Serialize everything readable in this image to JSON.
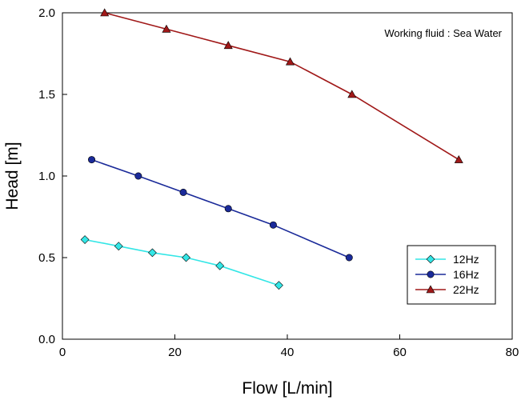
{
  "chart_data": {
    "type": "line",
    "title": "",
    "xlabel": "Flow [L/min]",
    "ylabel": "Head [m]",
    "xlim": [
      0,
      80
    ],
    "ylim": [
      0.0,
      2.0
    ],
    "x_ticks": [
      "0",
      "20",
      "40",
      "60",
      "80"
    ],
    "y_ticks": [
      "0.0",
      "0.5",
      "1.0",
      "1.5",
      "2.0"
    ],
    "grid": false,
    "legend_position": "bottom-right",
    "annotation": "Working fluid : Sea Water",
    "series": [
      {
        "name": "12Hz",
        "color": "#33e6e6",
        "marker": "diamond",
        "points": [
          [
            4.0,
            0.61
          ],
          [
            10.0,
            0.57
          ],
          [
            16.0,
            0.53
          ],
          [
            22.0,
            0.5
          ],
          [
            28.0,
            0.45
          ],
          [
            38.5,
            0.33
          ]
        ]
      },
      {
        "name": "16Hz",
        "color": "#1a2a99",
        "marker": "circle",
        "points": [
          [
            5.2,
            1.1
          ],
          [
            13.5,
            1.0
          ],
          [
            21.5,
            0.9
          ],
          [
            29.5,
            0.8
          ],
          [
            37.5,
            0.7
          ],
          [
            51.0,
            0.5
          ]
        ]
      },
      {
        "name": "22Hz",
        "color": "#a01818",
        "marker": "triangle",
        "points": [
          [
            7.5,
            2.0
          ],
          [
            18.5,
            1.9
          ],
          [
            29.5,
            1.8
          ],
          [
            40.5,
            1.7
          ],
          [
            51.5,
            1.5
          ],
          [
            70.5,
            1.1
          ]
        ]
      }
    ]
  }
}
